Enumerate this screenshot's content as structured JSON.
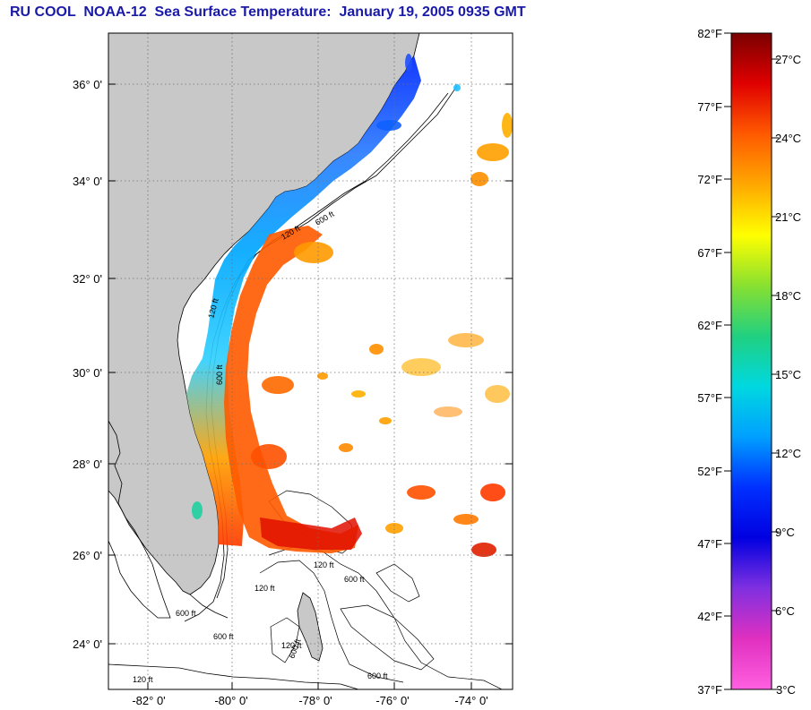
{
  "title": "RU COOL  NOAA-12  Sea Surface Temperature:  January 19, 2005 0935 GMT",
  "map": {
    "lat_labels": [
      "36° 0'",
      "34° 0'",
      "32° 0'",
      "30° 0'",
      "28° 0'",
      "26° 0'",
      "24° 0'"
    ],
    "lon_labels": [
      "-82° 0'",
      "-80° 0'",
      "-78° 0'",
      "-76° 0'",
      "-74° 0'"
    ],
    "contour_labels": [
      "120 ft",
      "600 ft",
      "120 ft",
      "600 ft",
      "600 ft",
      "120 ft",
      "600 ft",
      "120 ft",
      "600 ft",
      "120 ft",
      "600 ft",
      "600 ft",
      "120 ft"
    ],
    "colors": {
      "land": "#c8c8c8",
      "ocean_nodata": "#ffffff",
      "grid": "#7a7a7a"
    }
  },
  "colorbar": {
    "fahrenheit": [
      "82°F",
      "77°F",
      "72°F",
      "67°F",
      "62°F",
      "57°F",
      "52°F",
      "47°F",
      "42°F",
      "37°F"
    ],
    "celsius": [
      "27°C",
      "24°C",
      "21°C",
      "18°C",
      "15°C",
      "12°C",
      "9°C",
      "6°C",
      "3°C"
    ],
    "gradient_stops": [
      "#7a0000",
      "#e00000",
      "#ff5a00",
      "#ffa800",
      "#ffff00",
      "#88e030",
      "#20d080",
      "#00d8e0",
      "#00a0ff",
      "#0030ff",
      "#0000e0",
      "#8030e0",
      "#e030c0",
      "#ff60e0"
    ]
  }
}
